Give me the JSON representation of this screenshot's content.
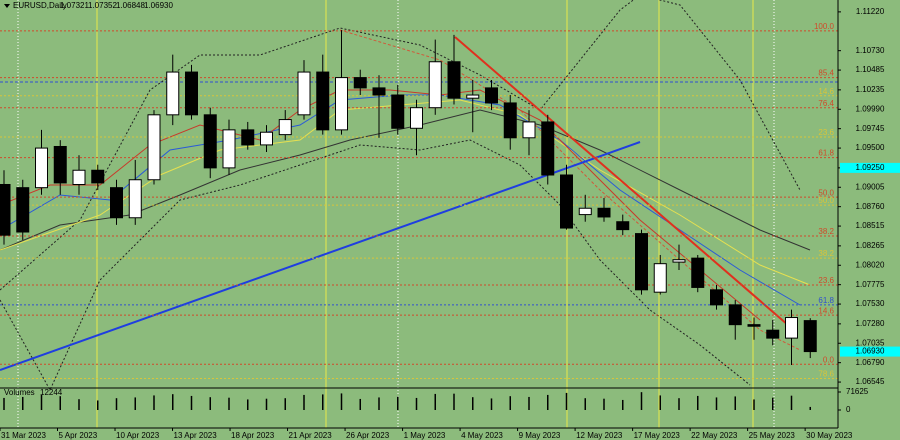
{
  "chart_data": {
    "type": "candlestick",
    "title": "EURUSD,Daily",
    "last_close_label": "1.06930",
    "categories": [
      "31 Mar 2023",
      null,
      null,
      "5 Apr 2023",
      null,
      null,
      "10 Apr 2023",
      null,
      null,
      "13 Apr 2023",
      null,
      null,
      "18 Apr 2023",
      null,
      null,
      "21 Apr 2023",
      null,
      null,
      "26 Apr 2023",
      null,
      null,
      "1 May 2023",
      null,
      null,
      "4 May 2023",
      null,
      null,
      "9 May 2023",
      null,
      null,
      "12 May 2023",
      null,
      null,
      "17 May 2023",
      null,
      null,
      "22 May 2023",
      null,
      null,
      "25 May 2023",
      null,
      null,
      "30 May 2023",
      null
    ],
    "open": [
      1.0904,
      1.09,
      1.09,
      1.0952,
      1.0904,
      1.0922,
      1.09,
      1.0862,
      1.091,
      1.0992,
      1.1046,
      1.0992,
      1.0925,
      1.0973,
      1.0954,
      1.0967,
      1.0992,
      1.1046,
      1.0973,
      1.1039,
      1.1026,
      1.1017,
      1.0975,
      1.1001,
      1.1059,
      1.1013,
      1.1026,
      1.1007,
      1.0963,
      1.0983,
      1.0916,
      1.0866,
      1.0874,
      1.0857,
      1.0842,
      1.0768,
      1.0806,
      1.0811,
      1.0771,
      1.0752,
      1.0727,
      1.072,
      1.071,
      1.07321
    ],
    "high": [
      1.0922,
      1.091,
      1.0973,
      1.096,
      1.0941,
      1.0929,
      1.091,
      1.0935,
      1.0998,
      1.1068,
      1.1055,
      1.1001,
      1.0986,
      1.0983,
      1.0979,
      1.0998,
      1.1061,
      1.1068,
      1.1099,
      1.1049,
      1.1042,
      1.103,
      1.1011,
      1.1087,
      1.1093,
      1.1036,
      1.1036,
      1.1017,
      1.0998,
      1.0992,
      1.0929,
      1.0891,
      1.0887,
      1.0866,
      1.0847,
      1.0815,
      1.0828,
      1.0815,
      1.0777,
      1.0758,
      1.0736,
      1.0733,
      1.0746,
      1.07352
    ],
    "low": [
      1.0828,
      1.0834,
      1.0891,
      1.0891,
      1.0891,
      1.0897,
      1.0853,
      1.0853,
      1.0904,
      1.0979,
      1.0986,
      1.0912,
      1.0916,
      1.0948,
      1.0945,
      1.096,
      1.0986,
      1.0967,
      1.0967,
      1.1017,
      1.0963,
      1.0967,
      1.0941,
      1.0992,
      1.1005,
      1.097,
      1.0998,
      1.0948,
      1.0941,
      1.0904,
      1.0847,
      1.0857,
      1.0857,
      1.084,
      1.0765,
      1.0765,
      1.0796,
      1.0768,
      1.0746,
      1.0708,
      1.0708,
      1.0701,
      1.0676,
      1.06848
    ],
    "close": [
      1.084,
      1.0844,
      1.095,
      1.0906,
      1.0922,
      1.0906,
      1.0862,
      1.091,
      1.0992,
      1.1046,
      1.0992,
      1.0925,
      1.0973,
      1.0954,
      1.097,
      1.0986,
      1.1046,
      1.0973,
      1.1039,
      1.1026,
      1.1017,
      1.0975,
      1.1001,
      1.1059,
      1.1013,
      1.1017,
      1.1007,
      1.0963,
      1.0983,
      1.0916,
      1.0849,
      1.0874,
      1.0863,
      1.0847,
      1.0771,
      1.0804,
      1.0809,
      1.0774,
      1.0752,
      1.0727,
      1.0725,
      1.071,
      1.0736,
      1.0693
    ],
    "ylim": [
      1.0647,
      1.1137
    ],
    "yticks": [
      {
        "value": 1.1122,
        "label": "1.11220"
      },
      {
        "value": 1.1073,
        "label": "1.10730"
      },
      1.10485,
      1.10235,
      {
        "value": 1.0999,
        "label": "1.09990"
      },
      1.09745,
      {
        "value": 1.095,
        "label": "1.09500"
      },
      {
        "value": 1.0925,
        "label": "1.09250"
      },
      1.09005,
      {
        "value": 1.0876,
        "label": "1.08760"
      },
      1.08515,
      1.08265,
      {
        "value": 1.0802,
        "label": "1.08020"
      },
      1.07775,
      {
        "value": 1.0753,
        "label": "1.07530"
      },
      {
        "value": 1.0728,
        "label": "1.07280"
      },
      1.07035,
      {
        "value": 1.0679,
        "label": "1.06790"
      },
      1.06545
    ],
    "highlight_tick_index": 7,
    "fib_levels": [
      {
        "label": "100.0",
        "value": 1.1098,
        "color": "#d04a2a"
      },
      {
        "label": "85.4",
        "value": 1.1039,
        "color": "#d04a2a"
      },
      {
        "label": "14.6",
        "value": 1.1016,
        "color": "#d8c43a"
      },
      {
        "label": "76.4",
        "value": 1.1001,
        "color": "#d04a2a"
      },
      {
        "label": "23.6",
        "value": 1.0964,
        "color": "#d8c43a"
      },
      {
        "label": "61.8",
        "value": 1.0938,
        "color": "#d04a2a"
      },
      {
        "label": "50.0",
        "value": 1.0888,
        "color": "#d04a2a"
      },
      {
        "label": "50.0",
        "value": 1.0878,
        "color": "#d8c43a"
      },
      {
        "label": "38.2",
        "value": 1.0839,
        "color": "#d04a2a"
      },
      {
        "label": "38.2",
        "value": 1.0811,
        "color": "#d8c43a"
      },
      {
        "label": "23.6",
        "value": 1.0777,
        "color": "#d04a2a"
      },
      {
        "label": "61.8",
        "value": 1.0752,
        "color": "#3050d0"
      },
      {
        "label": "14.6",
        "value": 1.0739,
        "color": "#d04a2a"
      },
      {
        "label": "0.0",
        "value": 1.0677,
        "color": "#d04a2a"
      },
      {
        "label": "78.6",
        "value": 1.0659,
        "color": "#d8c43a"
      }
    ],
    "volume_title": "Volumes",
    "volume": [
      48000,
      52000,
      61000,
      55000,
      43000,
      38000,
      47000,
      50000,
      58000,
      63000,
      56000,
      51000,
      49000,
      42000,
      45000,
      47000,
      60000,
      62000,
      66000,
      44000,
      50000,
      53000,
      48000,
      64000,
      65000,
      51000,
      46000,
      55000,
      52000,
      60000,
      68000,
      47000,
      45000,
      40000,
      71000,
      58000,
      47000,
      56000,
      50000,
      54000,
      42000,
      49000,
      57000,
      12244
    ],
    "vlim": [
      0,
      71625
    ],
    "vticks": [
      71625,
      0
    ]
  }
}
